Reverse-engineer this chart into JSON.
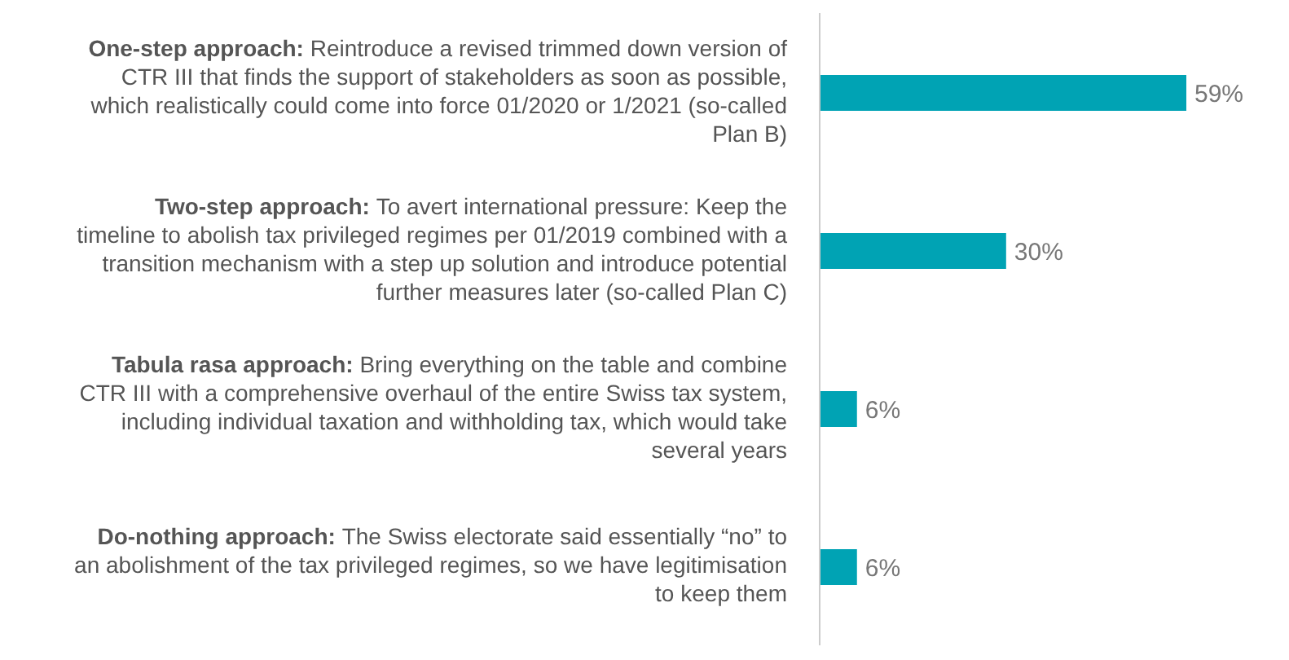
{
  "chart_data": {
    "type": "bar",
    "orientation": "horizontal",
    "categories": [
      "One-step approach: Reintroduce a revised trimmed down version of CTR III that finds the support of stakeholders as soon as possible, which realistically could come into force 01/2020 or 1/2021 (so-called Plan B)",
      "Two-step approach: To avert international pressure: Keep the timeline to abolish tax privileged regimes per 01/2019 combined with a transition mechanism with a step up solution and introduce potential further measures later (so-called Plan C)",
      "Tabula rasa approach: Bring everything on the table and combine CTR III with a comprehensive overhaul of the entire Swiss tax system, including individual taxation and withholding tax, which would take several years",
      "Do-nothing approach: The Swiss electorate said essentially “no” to an abolishment of the tax privileged regimes, so we have legitimisation to keep them"
    ],
    "values": [
      59,
      30,
      6,
      6
    ],
    "value_labels": [
      "59%",
      "30%",
      "6%",
      "6%"
    ],
    "color": "#00a3b4"
  }
}
